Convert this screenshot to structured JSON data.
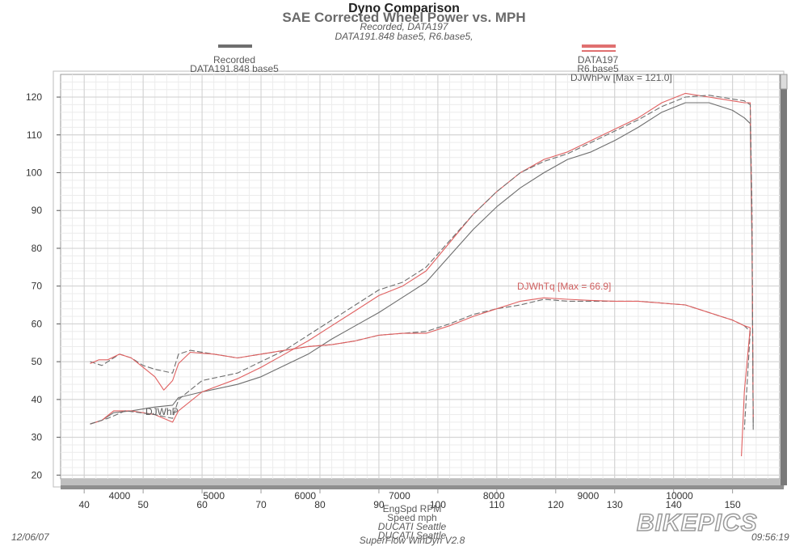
{
  "chart_data": {
    "type": "line",
    "title": "Dyno Comparison",
    "subtitle": "SAE Corrected Wheel Power vs. MPH",
    "subtitle_lines": [
      "Recorded, DATA197",
      "DATA191.848 base5, R6.base5,"
    ],
    "legend": [
      {
        "name": "Recorded",
        "detail": "DATA191.848 base5",
        "color": "#6e6e6e"
      },
      {
        "name": "DATA197",
        "detail": "R6.base5",
        "color": "#e07070"
      }
    ],
    "annotations": {
      "power": "DJWhPw [Max = 121.0]",
      "torque": "DJWhTq [Max = 66.9]",
      "partial": "DJWhP"
    },
    "xlabel": "EngSpd  RPM",
    "xlabel2": "Speed   mph",
    "xlim": [
      36,
      158
    ],
    "ylim": [
      19,
      126
    ],
    "mph_ticks": [
      40,
      50,
      60,
      70,
      80,
      90,
      100,
      110,
      120,
      130,
      140,
      150
    ],
    "mph_tick_labels": [
      "40",
      "50",
      "60",
      "70",
      "80",
      "90",
      "100",
      "110",
      "120",
      "130",
      "140",
      "150"
    ],
    "rpm_ticks": [
      {
        "label": "4000",
        "mph": 46
      },
      {
        "label": "5000",
        "mph": 62
      },
      {
        "label": "6000",
        "mph": 77.5
      },
      {
        "label": "7000",
        "mph": 93.5
      },
      {
        "label": "8000",
        "mph": 109.5
      },
      {
        "label": "9000",
        "mph": 125.5
      },
      {
        "label": "10000",
        "mph": 141
      }
    ],
    "y_ticks": [
      20,
      30,
      40,
      50,
      60,
      70,
      80,
      90,
      100,
      110,
      120
    ],
    "y_tick_labels": [
      "20",
      "30",
      "40",
      "50",
      "60",
      "70",
      "80",
      "90",
      "100",
      "110",
      "120"
    ],
    "grid": true,
    "series": [
      {
        "name": "Recorded",
        "metric": "power",
        "color": "#6e6e6e",
        "dash": false,
        "points": [
          [
            41,
            33.5
          ],
          [
            43,
            34.5
          ],
          [
            45,
            36.5
          ],
          [
            48,
            37
          ],
          [
            52,
            38
          ],
          [
            55,
            38.5
          ],
          [
            56,
            40.5
          ],
          [
            60,
            42
          ],
          [
            66,
            44
          ],
          [
            70,
            46
          ],
          [
            74,
            49
          ],
          [
            78,
            52
          ],
          [
            82,
            56
          ],
          [
            86,
            59.5
          ],
          [
            90,
            63
          ],
          [
            94,
            67
          ],
          [
            98,
            71
          ],
          [
            102,
            78
          ],
          [
            106,
            85
          ],
          [
            110,
            91
          ],
          [
            114,
            96
          ],
          [
            118,
            100
          ],
          [
            122,
            103.5
          ],
          [
            126,
            105.5
          ],
          [
            130,
            108.5
          ],
          [
            134,
            112
          ],
          [
            138,
            116
          ],
          [
            142,
            118.5
          ],
          [
            146,
            118.5
          ],
          [
            150,
            116.5
          ],
          [
            152,
            114.5
          ],
          [
            153,
            113
          ],
          [
            153.3,
            80
          ],
          [
            153.5,
            33
          ]
        ]
      },
      {
        "name": "DATA197",
        "metric": "power",
        "color": "#e06060",
        "dash": false,
        "points": [
          [
            41,
            33.5
          ],
          [
            43,
            34.5
          ],
          [
            45,
            37
          ],
          [
            48,
            37
          ],
          [
            52,
            36
          ],
          [
            55,
            34
          ],
          [
            56,
            37
          ],
          [
            60,
            42
          ],
          [
            66,
            45.5
          ],
          [
            70,
            48.5
          ],
          [
            74,
            52
          ],
          [
            78,
            55.5
          ],
          [
            82,
            59.5
          ],
          [
            86,
            63.5
          ],
          [
            90,
            67.5
          ],
          [
            94,
            70
          ],
          [
            98,
            74
          ],
          [
            102,
            81.5
          ],
          [
            106,
            89
          ],
          [
            110,
            95
          ],
          [
            114,
            100
          ],
          [
            118,
            103.5
          ],
          [
            122,
            105.5
          ],
          [
            126,
            108.5
          ],
          [
            130,
            111.5
          ],
          [
            134,
            114.5
          ],
          [
            138,
            118.5
          ],
          [
            142,
            121
          ],
          [
            146,
            120
          ],
          [
            150,
            119
          ],
          [
            152,
            118.5
          ],
          [
            153,
            118.5
          ],
          [
            153.3,
            85
          ],
          [
            153.5,
            35
          ]
        ]
      },
      {
        "name": "Recorded",
        "metric": "power",
        "color": "#6e6e6e",
        "dash": true,
        "points": [
          [
            41,
            33.5
          ],
          [
            44,
            35
          ],
          [
            47,
            37
          ],
          [
            52,
            36
          ],
          [
            55,
            35
          ],
          [
            56,
            40
          ],
          [
            60,
            45
          ],
          [
            66,
            47
          ],
          [
            70,
            50
          ],
          [
            74,
            53
          ],
          [
            78,
            57
          ],
          [
            82,
            61
          ],
          [
            86,
            65
          ],
          [
            90,
            69
          ],
          [
            94,
            71
          ],
          [
            98,
            75
          ],
          [
            102,
            82
          ],
          [
            106,
            89
          ],
          [
            110,
            95
          ],
          [
            114,
            100
          ],
          [
            118,
            103
          ],
          [
            122,
            105
          ],
          [
            126,
            108
          ],
          [
            130,
            111
          ],
          [
            134,
            114
          ],
          [
            138,
            117.5
          ],
          [
            142,
            120
          ],
          [
            146,
            120.5
          ],
          [
            150,
            119.5
          ],
          [
            152,
            119
          ],
          [
            153,
            118
          ],
          [
            153.3,
            90
          ],
          [
            153.5,
            32
          ]
        ]
      },
      {
        "name": "Recorded",
        "metric": "torque",
        "color": "#6e6e6e",
        "dash": true,
        "points": [
          [
            41,
            50
          ],
          [
            43,
            49
          ],
          [
            44.5,
            50.5
          ],
          [
            46,
            52
          ],
          [
            48,
            51
          ],
          [
            50,
            49
          ],
          [
            52,
            48
          ],
          [
            55,
            47
          ],
          [
            56,
            52
          ],
          [
            58,
            53
          ],
          [
            62,
            52
          ],
          [
            66,
            51
          ],
          [
            70,
            52
          ],
          [
            74,
            53
          ],
          [
            78,
            54
          ],
          [
            82,
            54.5
          ],
          [
            86,
            55.5
          ],
          [
            90,
            57
          ],
          [
            94,
            57.5
          ],
          [
            98,
            58
          ],
          [
            102,
            60
          ],
          [
            106,
            62.5
          ],
          [
            110,
            64
          ],
          [
            114,
            65
          ],
          [
            118,
            66.5
          ],
          [
            122,
            66
          ],
          [
            126,
            66
          ],
          [
            130,
            66
          ],
          [
            134,
            66
          ],
          [
            138,
            65.5
          ],
          [
            142,
            65
          ],
          [
            144,
            64
          ],
          [
            148,
            62
          ],
          [
            150,
            61
          ],
          [
            152,
            59.5
          ],
          [
            153,
            58
          ],
          [
            152.5,
            45
          ],
          [
            152,
            32
          ]
        ]
      },
      {
        "name": "DATA197",
        "metric": "torque",
        "color": "#e06060",
        "dash": false,
        "points": [
          [
            41,
            49.5
          ],
          [
            42.5,
            50.5
          ],
          [
            44,
            50.5
          ],
          [
            46,
            52
          ],
          [
            48,
            51
          ],
          [
            50,
            48.5
          ],
          [
            52,
            46
          ],
          [
            53.5,
            42.5
          ],
          [
            55,
            45
          ],
          [
            56,
            49.5
          ],
          [
            58,
            52.5
          ],
          [
            62,
            52
          ],
          [
            66,
            51
          ],
          [
            70,
            52
          ],
          [
            74,
            53
          ],
          [
            78,
            54
          ],
          [
            82,
            54.5
          ],
          [
            86,
            55.5
          ],
          [
            90,
            57
          ],
          [
            94,
            57.5
          ],
          [
            98,
            57.5
          ],
          [
            102,
            59.5
          ],
          [
            106,
            62
          ],
          [
            110,
            64
          ],
          [
            114,
            66
          ],
          [
            118,
            66.9
          ],
          [
            122,
            66.5
          ],
          [
            126,
            66.2
          ],
          [
            130,
            66
          ],
          [
            134,
            66
          ],
          [
            138,
            65.5
          ],
          [
            142,
            65
          ],
          [
            144,
            64
          ],
          [
            148,
            62
          ],
          [
            150,
            61
          ],
          [
            152,
            59.5
          ],
          [
            153,
            59
          ],
          [
            152,
            42
          ],
          [
            151.5,
            25
          ]
        ]
      }
    ]
  },
  "footer": {
    "date": "12/06/07",
    "time": "09:56:19",
    "shop_lines": [
      "DUCATI Seattle",
      "DUCATI Seattle"
    ],
    "software": "SuperFlow WinDyn V2.8",
    "watermark": "BIKEPICS"
  }
}
